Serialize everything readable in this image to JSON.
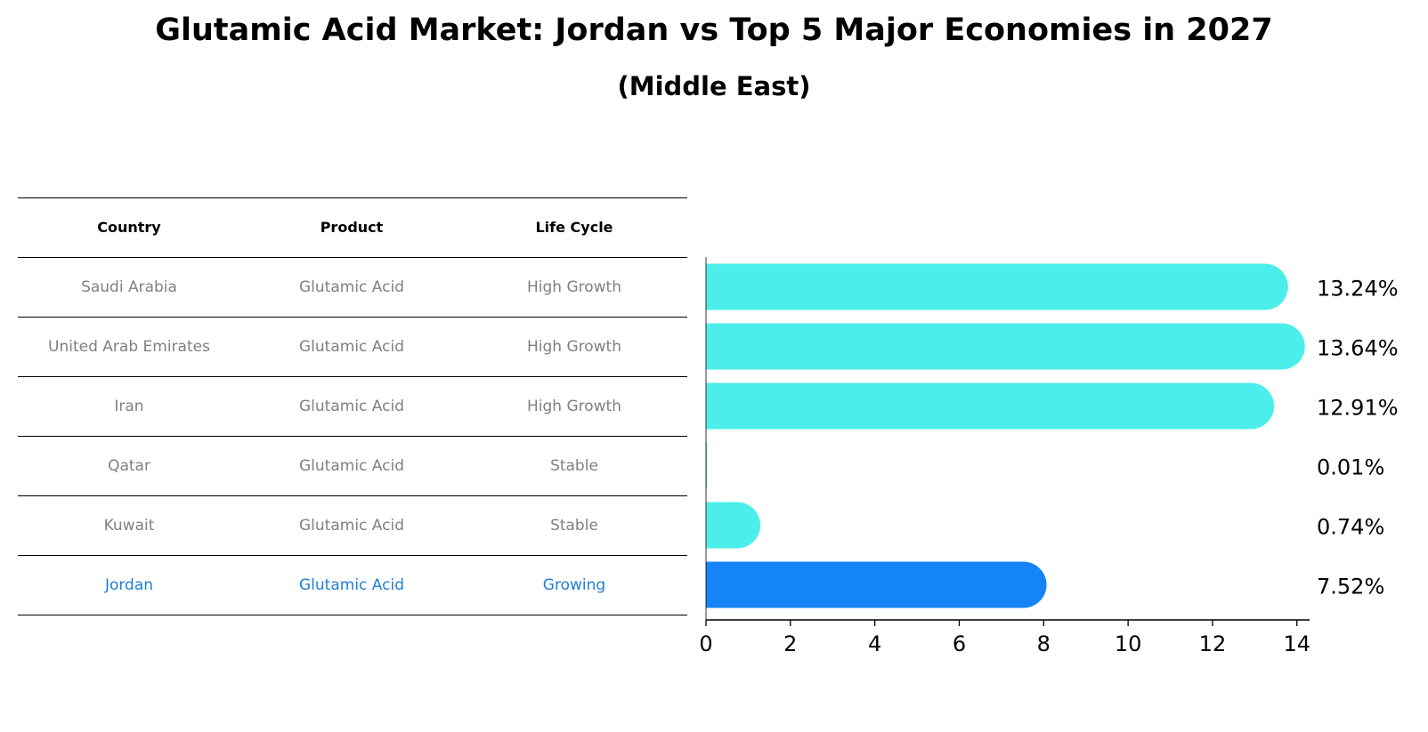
{
  "title": "Glutamic Acid Market: Jordan vs Top 5 Major Economies in 2027",
  "subtitle": "(Middle East)",
  "colors": {
    "normal_bar": "#4BEEEA",
    "highlight_bar": "#1585F5",
    "normal_text": "#808080",
    "highlight_text": "#1F7FD6"
  },
  "table": {
    "headers": [
      "Country",
      "Product",
      "Life Cycle"
    ],
    "rows": [
      {
        "country": "Saudi Arabia",
        "product": "Glutamic Acid",
        "life_cycle": "High Growth",
        "highlight": false
      },
      {
        "country": "United Arab Emirates",
        "product": "Glutamic Acid",
        "life_cycle": "High Growth",
        "highlight": false
      },
      {
        "country": "Iran",
        "product": "Glutamic Acid",
        "life_cycle": "High Growth",
        "highlight": false
      },
      {
        "country": "Qatar",
        "product": "Glutamic Acid",
        "life_cycle": "Stable",
        "highlight": false
      },
      {
        "country": "Kuwait",
        "product": "Glutamic Acid",
        "life_cycle": "Stable",
        "highlight": false
      },
      {
        "country": "Jordan",
        "product": "Glutamic Acid",
        "life_cycle": "Growing",
        "highlight": true
      }
    ]
  },
  "chart_data": {
    "type": "bar",
    "orientation": "horizontal",
    "categories": [
      "Saudi Arabia",
      "United Arab Emirates",
      "Iran",
      "Qatar",
      "Kuwait",
      "Jordan"
    ],
    "values": [
      13.24,
      13.64,
      12.91,
      0.01,
      0.74,
      7.52
    ],
    "value_labels": [
      "13.24%",
      "13.64%",
      "12.91%",
      "0.01%",
      "0.74%",
      "7.52%"
    ],
    "highlight_category": "Jordan",
    "xlim": [
      0,
      14.3
    ],
    "xticks": [
      0,
      2,
      4,
      6,
      8,
      10,
      12,
      14
    ],
    "grid": false
  }
}
